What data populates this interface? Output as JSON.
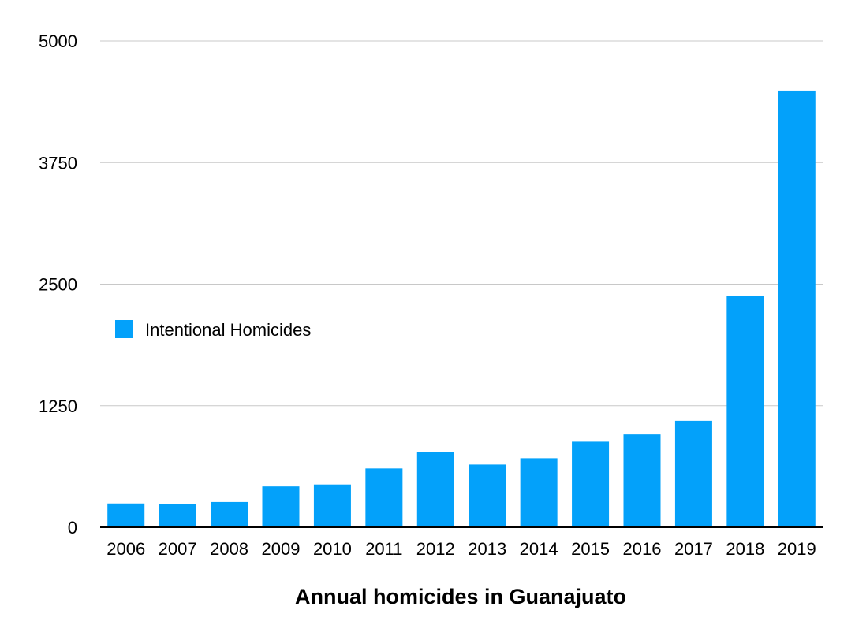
{
  "chart_data": {
    "type": "bar",
    "title": "Annual homicides in Guanajuato",
    "xlabel": "",
    "ylabel": "",
    "categories": [
      "2006",
      "2007",
      "2008",
      "2009",
      "2010",
      "2011",
      "2012",
      "2013",
      "2014",
      "2015",
      "2016",
      "2017",
      "2018",
      "2019"
    ],
    "series": [
      {
        "name": "Intentional Homicides",
        "color": "#03a1fa",
        "values": [
          245,
          235,
          260,
          420,
          440,
          605,
          775,
          645,
          710,
          880,
          955,
          1095,
          2375,
          4490
        ]
      }
    ],
    "ylim": [
      0,
      5000
    ],
    "y_ticks": [
      "0",
      "1250",
      "2500",
      "3750",
      "5000"
    ],
    "grid": true,
    "legend_position": "left-middle"
  }
}
